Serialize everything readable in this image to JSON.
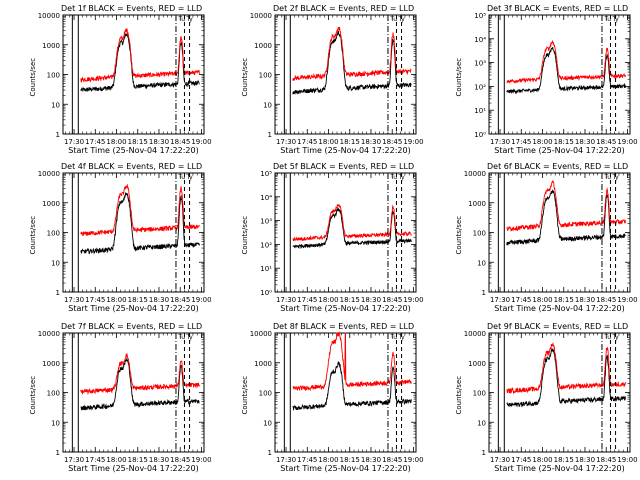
{
  "chart_data": [
    {
      "type": "line",
      "title": "Det 1f BLACK = Events, RED = LLD",
      "ylabel": "Counts/sec",
      "xlabel": "Start Time (25-Nov-04 17:22:20)",
      "yscale": "log",
      "ylim": [
        1,
        10000
      ],
      "ytick_labels": [
        "1",
        "10",
        "100",
        "1000",
        "10000"
      ],
      "xlim": [
        17.37,
        19.03
      ],
      "xtick_labels": [
        "17:30",
        "17:45",
        "18:00",
        "18:15",
        "18:30",
        "18:45",
        "19:00"
      ],
      "vlines": {
        "solid": [
          17.48,
          17.55
        ],
        "dashdot": [
          18.7
        ],
        "dashed": [
          18.8,
          18.86
        ]
      },
      "label_marks": [
        "Tu",
        "Ty"
      ],
      "series": [
        {
          "name": "BLACK = Events",
          "color": "#000000",
          "baseline": 40,
          "peak1": 2200,
          "peak2": 1100
        },
        {
          "name": "RED = LLD",
          "color": "#ff0000",
          "baseline": 90,
          "peak1": 3000,
          "peak2": 1600
        }
      ]
    },
    {
      "type": "line",
      "title": "Det 2f BLACK = Events, RED = LLD",
      "ylabel": "Counts/sec",
      "xlabel": "Start Time (25-Nov-04 17:22:20)",
      "yscale": "log",
      "ylim": [
        1,
        10000
      ],
      "ytick_labels": [
        "1",
        "10",
        "100",
        "1000",
        "10000"
      ],
      "xlim": [
        17.37,
        19.03
      ],
      "xtick_labels": [
        "17:30",
        "17:45",
        "18:00",
        "18:15",
        "18:30",
        "18:45",
        "19:00"
      ],
      "vlines": {
        "solid": [
          17.48,
          17.55
        ],
        "dashdot": [
          18.7
        ],
        "dashed": [
          18.8,
          18.86
        ]
      },
      "label_marks": [
        "Tu",
        "Ty"
      ],
      "series": [
        {
          "name": "BLACK = Events",
          "color": "#000000",
          "baseline": 35,
          "peak1": 2500,
          "peak2": 1400
        },
        {
          "name": "RED = LLD",
          "color": "#ff0000",
          "baseline": 100,
          "peak1": 3500,
          "peak2": 2200
        }
      ]
    },
    {
      "type": "line",
      "title": "Det 3f BLACK = Events, RED = LLD",
      "ylabel": "Counts/sec",
      "xlabel": "Start Time (25-Nov-04 17:22:20)",
      "yscale": "log",
      "ylim": [
        1,
        100000
      ],
      "ytick_labels": [
        "10⁰",
        "10¹",
        "10²",
        "10³",
        "10⁴",
        "10⁵"
      ],
      "xlim": [
        17.37,
        19.03
      ],
      "xtick_labels": [
        "17:30",
        "17:45",
        "18:00",
        "18:15",
        "18:30",
        "18:45",
        "19:00"
      ],
      "vlines": {
        "solid": [
          17.48,
          17.55
        ],
        "dashdot": [
          18.7
        ],
        "dashed": [
          18.8,
          18.86
        ]
      },
      "label_marks": [
        "Tu",
        "Ty"
      ],
      "series": [
        {
          "name": "BLACK = Events",
          "color": "#000000",
          "baseline": 80,
          "peak1": 4000,
          "peak2": 2000
        },
        {
          "name": "RED = LLD",
          "color": "#ff0000",
          "baseline": 220,
          "peak1": 7000,
          "peak2": 3500
        }
      ]
    },
    {
      "type": "line",
      "title": "Det 4f BLACK = Events, RED = LLD",
      "ylabel": "Counts/sec",
      "xlabel": "Start Time (25-Nov-04 17:22:20)",
      "yscale": "log",
      "ylim": [
        1,
        10000
      ],
      "ytick_labels": [
        "1",
        "10",
        "100",
        "1000",
        "10000"
      ],
      "xlim": [
        17.37,
        19.03
      ],
      "xtick_labels": [
        "17:30",
        "17:45",
        "18:00",
        "18:15",
        "18:30",
        "18:45",
        "19:00"
      ],
      "vlines": {
        "solid": [
          17.48,
          17.55
        ],
        "dashdot": [
          18.7
        ],
        "dashed": [
          18.8,
          18.86
        ]
      },
      "label_marks": [
        "Tu",
        "Ty"
      ],
      "series": [
        {
          "name": "BLACK = Events",
          "color": "#000000",
          "baseline": 30,
          "peak1": 2000,
          "peak2": 1500
        },
        {
          "name": "RED = LLD",
          "color": "#ff0000",
          "baseline": 120,
          "peak1": 3500,
          "peak2": 3000
        }
      ]
    },
    {
      "type": "line",
      "title": "Det 5f BLACK = Events, RED = LLD",
      "ylabel": "Counts/sec",
      "xlabel": "Start Time (25-Nov-04 17:22:20)",
      "yscale": "log",
      "ylim": [
        1,
        100000
      ],
      "ytick_labels": [
        "10⁰",
        "10¹",
        "10²",
        "10³",
        "10⁴",
        "10⁵"
      ],
      "xlim": [
        17.37,
        19.03
      ],
      "xtick_labels": [
        "17:30",
        "17:45",
        "18:00",
        "18:15",
        "18:30",
        "18:45",
        "19:00"
      ],
      "vlines": {
        "solid": [
          17.48,
          17.55
        ],
        "dashdot": [
          18.7
        ],
        "dashed": [
          18.8,
          18.86
        ]
      },
      "label_marks": [
        "Tu",
        "Ty"
      ],
      "series": [
        {
          "name": "BLACK = Events",
          "color": "#000000",
          "baseline": 110,
          "peak1": 3000,
          "peak2": 2200
        },
        {
          "name": "RED = LLD",
          "color": "#ff0000",
          "baseline": 220,
          "peak1": 4500,
          "peak2": 3500
        }
      ]
    },
    {
      "type": "line",
      "title": "Det 6f BLACK = Events, RED = LLD",
      "ylabel": "Counts/sec",
      "xlabel": "Start Time (25-Nov-04 17:22:20)",
      "yscale": "log",
      "ylim": [
        1,
        10000
      ],
      "ytick_labels": [
        "1",
        "10",
        "100",
        "1000",
        "10000"
      ],
      "xlim": [
        17.37,
        19.03
      ],
      "xtick_labels": [
        "17:30",
        "17:45",
        "18:00",
        "18:15",
        "18:30",
        "18:45",
        "19:00"
      ],
      "vlines": {
        "solid": [
          17.48,
          17.55
        ],
        "dashdot": [
          18.7
        ],
        "dashed": [
          18.8,
          18.86
        ]
      },
      "label_marks": [
        "Tu",
        "Ty"
      ],
      "series": [
        {
          "name": "BLACK = Events",
          "color": "#000000",
          "baseline": 60,
          "peak1": 2500,
          "peak2": 1800
        },
        {
          "name": "RED = LLD",
          "color": "#ff0000",
          "baseline": 180,
          "peak1": 4500,
          "peak2": 2500
        }
      ]
    },
    {
      "type": "line",
      "title": "Det 7f BLACK = Events, RED = LLD",
      "ylabel": "Counts/sec",
      "xlabel": "Start Time (25-Nov-04 17:22:20)",
      "yscale": "log",
      "ylim": [
        1,
        10000
      ],
      "ytick_labels": [
        "1",
        "10",
        "100",
        "1000",
        "10000"
      ],
      "xlim": [
        17.37,
        19.03
      ],
      "xtick_labels": [
        "17:30",
        "17:45",
        "18:00",
        "18:15",
        "18:30",
        "18:45",
        "19:00"
      ],
      "vlines": {
        "solid": [
          17.48,
          17.55
        ],
        "dashdot": [
          18.7
        ],
        "dashed": [
          18.8,
          18.86
        ]
      },
      "label_marks": [
        "Tu",
        "Ty"
      ],
      "series": [
        {
          "name": "BLACK = Events",
          "color": "#000000",
          "baseline": 40,
          "peak1": 1200,
          "peak2": 700
        },
        {
          "name": "RED = LLD",
          "color": "#ff0000",
          "baseline": 140,
          "peak1": 1600,
          "peak2": 1000
        }
      ]
    },
    {
      "type": "line",
      "title": "Det 8f BLACK = Events, RED = LLD",
      "ylabel": "Counts/sec",
      "xlabel": "Start Time (25-Nov-04 17:22:20)",
      "yscale": "log",
      "ylim": [
        1,
        10000
      ],
      "ytick_labels": [
        "1",
        "10",
        "100",
        "1000",
        "10000"
      ],
      "xlim": [
        17.37,
        19.03
      ],
      "xtick_labels": [
        "17:30",
        "17:45",
        "18:00",
        "18:15",
        "18:30",
        "18:45",
        "19:00"
      ],
      "vlines": {
        "solid": [
          17.48,
          17.55
        ],
        "dashdot": [
          18.7
        ],
        "dashed": [
          18.8,
          18.86
        ]
      },
      "label_marks": [
        "Tu",
        "Ty"
      ],
      "series": [
        {
          "name": "BLACK = Events",
          "color": "#000000",
          "baseline": 40,
          "peak1": 900,
          "peak2": 600
        },
        {
          "name": "RED = LLD",
          "color": "#ff0000",
          "baseline": 180,
          "peak1": 9000,
          "peak2": 2000,
          "spikes": [
            18.1,
            18.2
          ]
        }
      ]
    },
    {
      "type": "line",
      "title": "Det 9f BLACK = Events, RED = LLD",
      "ylabel": "Counts/sec",
      "xlabel": "Start Time (25-Nov-04 17:22:20)",
      "yscale": "log",
      "ylim": [
        1,
        10000
      ],
      "ytick_labels": [
        "1",
        "10",
        "100",
        "1000",
        "10000"
      ],
      "xlim": [
        17.37,
        19.03
      ],
      "xtick_labels": [
        "17:30",
        "17:45",
        "18:00",
        "18:15",
        "18:30",
        "18:45",
        "19:00"
      ],
      "vlines": {
        "solid": [
          17.48,
          17.55
        ],
        "dashdot": [
          18.7
        ],
        "dashed": [
          18.8,
          18.86
        ]
      },
      "label_marks": [
        "Tu",
        "Ty"
      ],
      "series": [
        {
          "name": "BLACK = Events",
          "color": "#000000",
          "baseline": 50,
          "peak1": 2500,
          "peak2": 1500
        },
        {
          "name": "RED = LLD",
          "color": "#ff0000",
          "baseline": 150,
          "peak1": 4000,
          "peak2": 3000
        }
      ]
    }
  ]
}
